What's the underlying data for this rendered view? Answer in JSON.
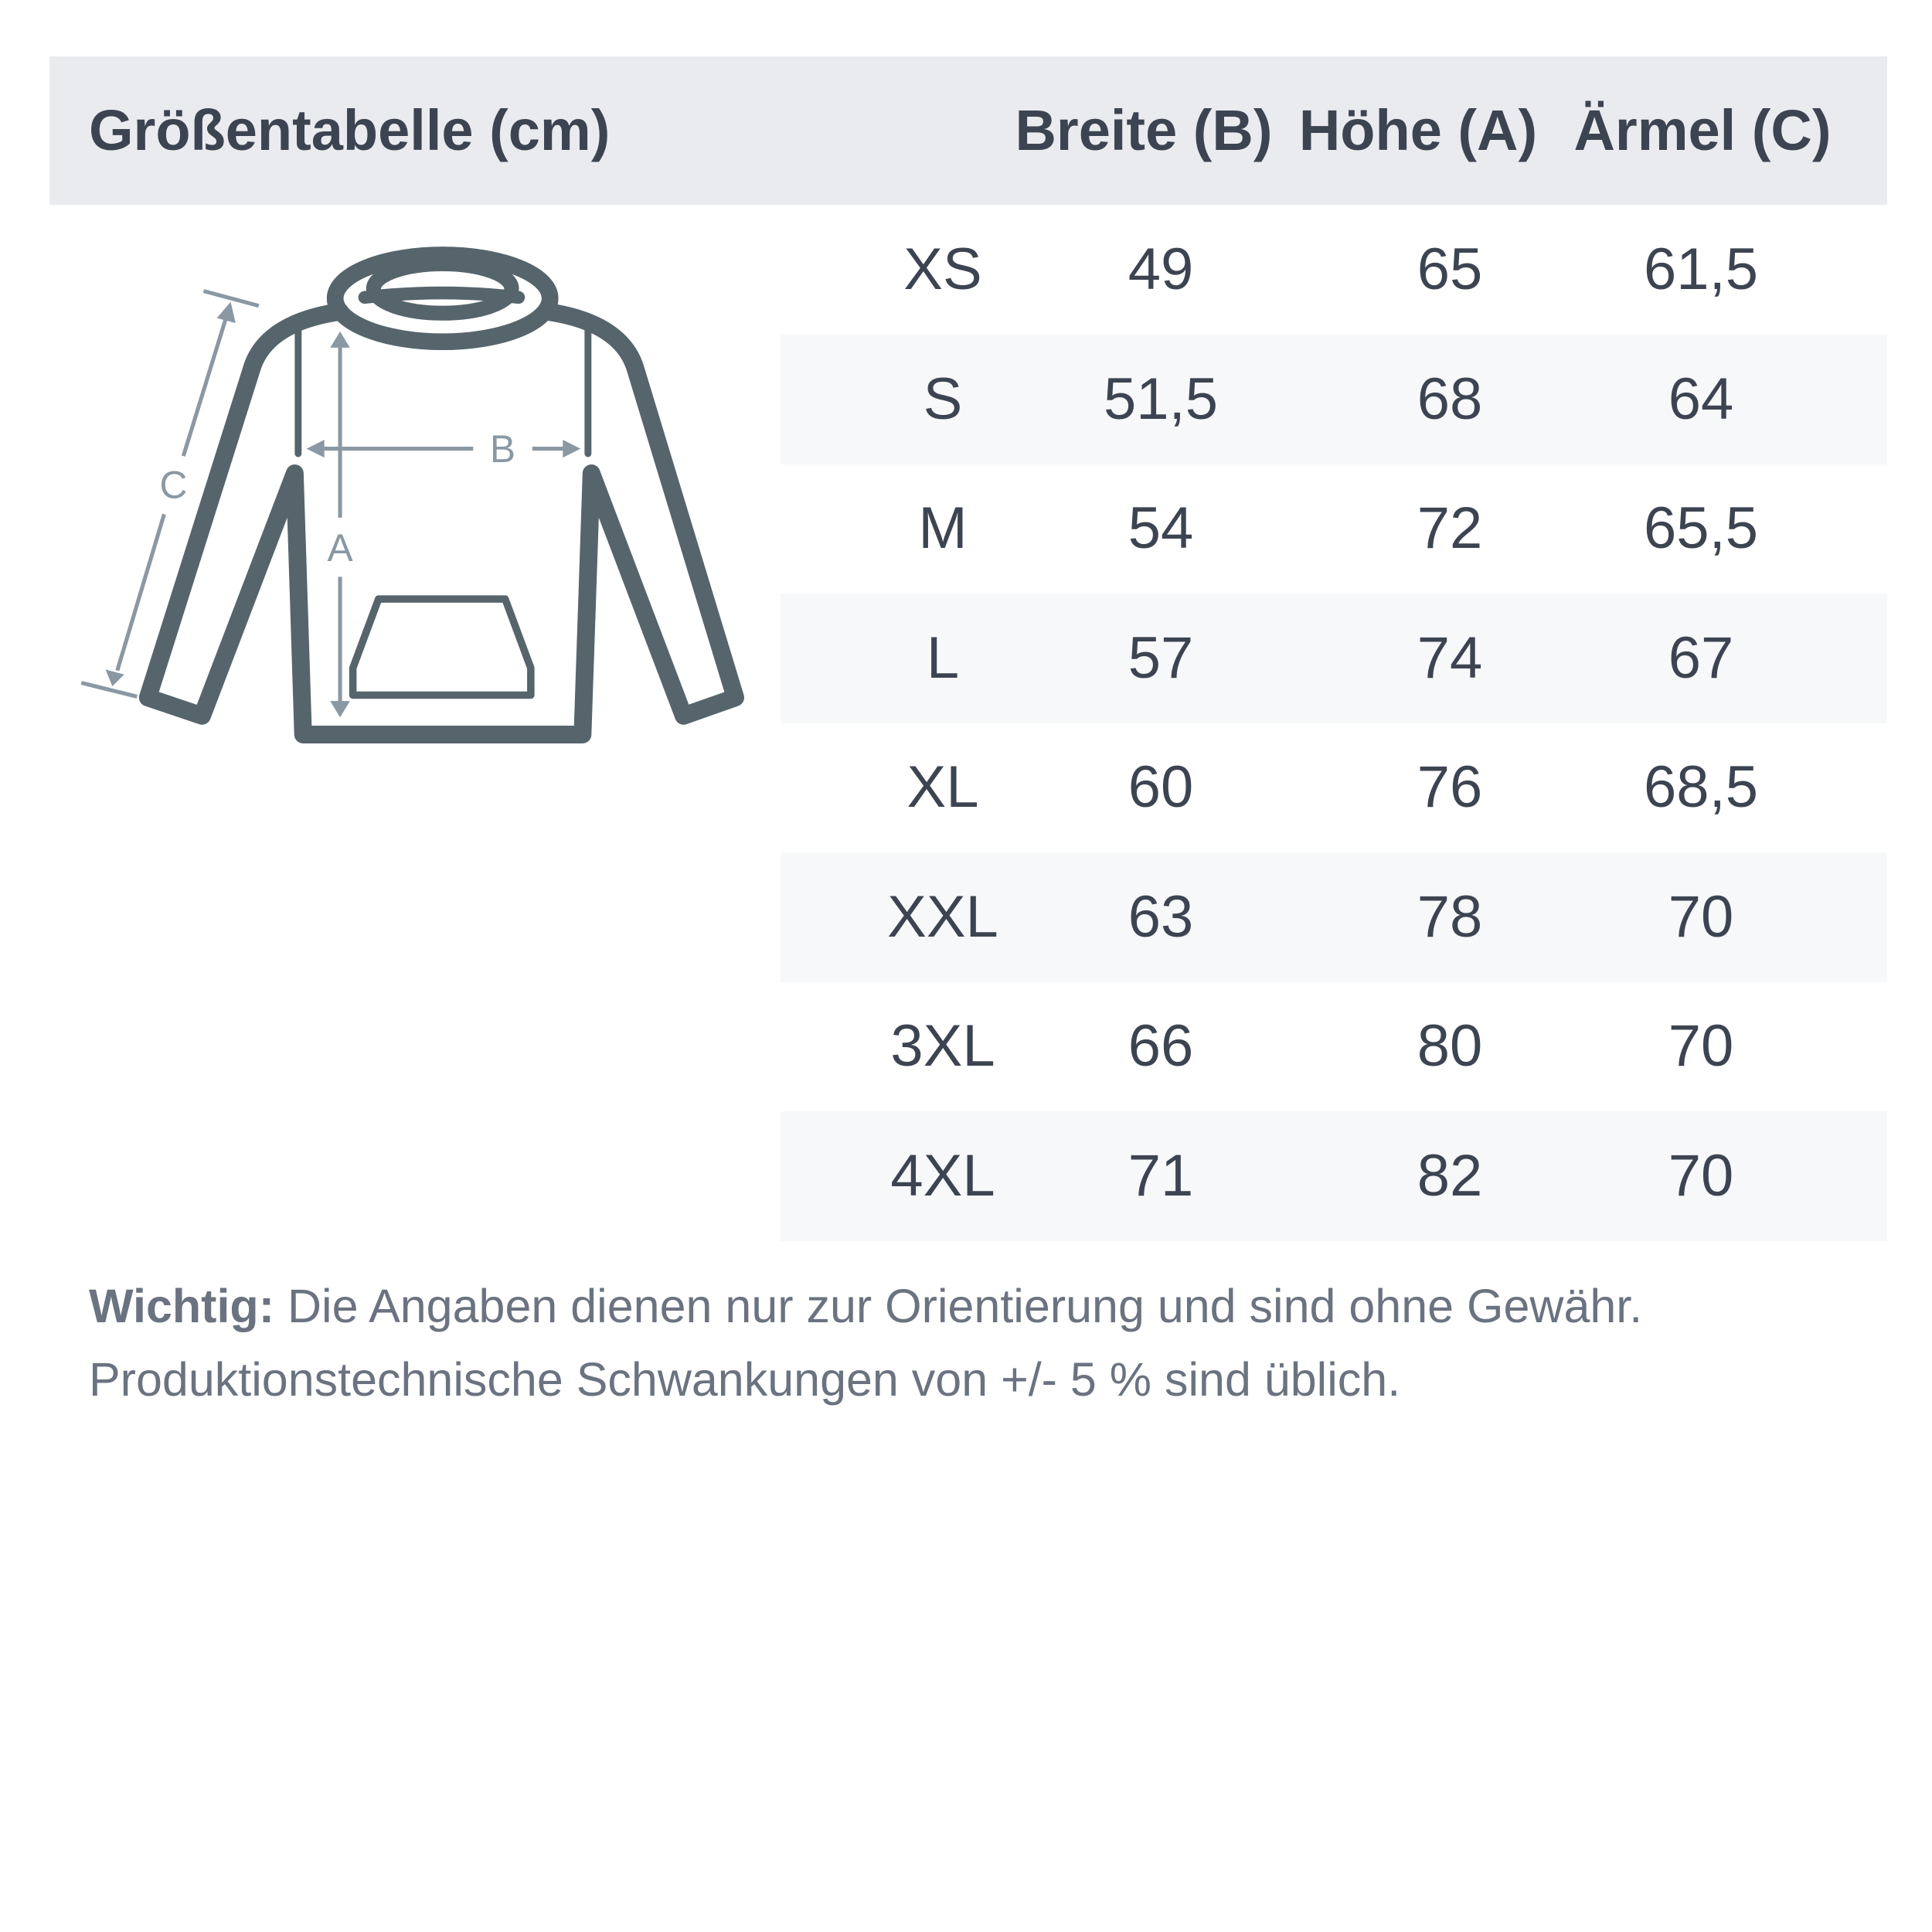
{
  "header": {
    "title": "Größentabelle (cm)",
    "columns": [
      "Breite (B)",
      "Höhe (A)",
      "Ärmel (C)"
    ]
  },
  "diagram": {
    "labels": {
      "a": "A",
      "b": "B",
      "c": "C"
    },
    "colors": {
      "outline": "#56656c",
      "measure": "#8a98a3"
    }
  },
  "rows": [
    {
      "size": "XS",
      "breite": "49",
      "hoehe": "65",
      "aermel": "61,5"
    },
    {
      "size": "S",
      "breite": "51,5",
      "hoehe": "68",
      "aermel": "64"
    },
    {
      "size": "M",
      "breite": "54",
      "hoehe": "72",
      "aermel": "65,5"
    },
    {
      "size": "L",
      "breite": "57",
      "hoehe": "74",
      "aermel": "67"
    },
    {
      "size": "XL",
      "breite": "60",
      "hoehe": "76",
      "aermel": "68,5"
    },
    {
      "size": "XXL",
      "breite": "63",
      "hoehe": "78",
      "aermel": "70"
    },
    {
      "size": "3XL",
      "breite": "66",
      "hoehe": "80",
      "aermel": "70"
    },
    {
      "size": "4XL",
      "breite": "71",
      "hoehe": "82",
      "aermel": "70"
    }
  ],
  "note": {
    "label": "Wichtig:",
    "line1": " Die Angaben dienen nur zur Orientierung und sind ohne Gewähr.",
    "line2": "Produktionstechnische Schwankungen von +/- 5 % sind üblich."
  }
}
